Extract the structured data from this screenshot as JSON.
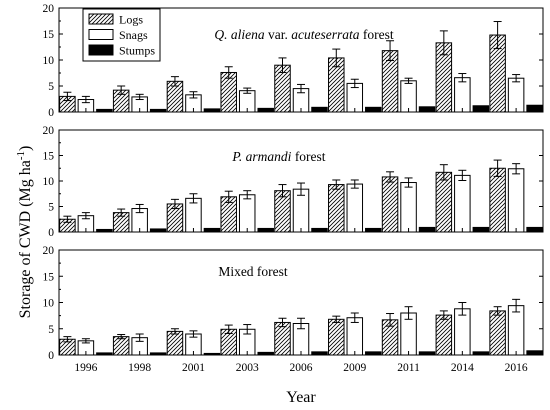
{
  "chart_data": {
    "type": "bar",
    "ylabel": "Storage of CWD (Mg ha-1)",
    "ylabel_parts": {
      "base": "Storage of CWD (Mg ha",
      "sup": "-1",
      "close": ")"
    },
    "xlabel": "Year",
    "categories": [
      "1996",
      "1998",
      "2001",
      "2003",
      "2006",
      "2009",
      "2011",
      "2014",
      "2016"
    ],
    "ylim": [
      0,
      20
    ],
    "yticks": [
      0,
      5,
      10,
      15,
      20
    ],
    "legend": {
      "position": "top-left",
      "entries": [
        {
          "name": "Logs",
          "pattern": "hatched"
        },
        {
          "name": "Snags",
          "pattern": "white"
        },
        {
          "name": "Stumps",
          "pattern": "black"
        }
      ]
    },
    "panels": [
      {
        "title_parts": [
          {
            "text": "Q. aliena",
            "italic": true
          },
          {
            "text": " var. ",
            "italic": false
          },
          {
            "text": "acuteserrata",
            "italic": true
          },
          {
            "text": " forest",
            "italic": false
          }
        ],
        "series": [
          {
            "name": "Logs",
            "values": [
              3.0,
              4.2,
              5.9,
              7.6,
              9.0,
              10.4,
              11.8,
              13.3,
              14.8
            ],
            "errors": [
              0.8,
              0.8,
              0.9,
              1.1,
              1.4,
              1.7,
              1.9,
              2.3,
              2.6
            ]
          },
          {
            "name": "Snags",
            "values": [
              2.4,
              2.9,
              3.3,
              4.1,
              4.5,
              5.5,
              6.0,
              6.6,
              6.5
            ],
            "errors": [
              0.6,
              0.5,
              0.6,
              0.5,
              0.8,
              0.8,
              0.5,
              0.8,
              0.7
            ]
          },
          {
            "name": "Stumps",
            "values": [
              0.5,
              0.5,
              0.6,
              0.7,
              0.9,
              0.9,
              1.0,
              1.2,
              1.3
            ],
            "errors": [
              0.1,
              0.1,
              0.1,
              0.1,
              0.1,
              0.1,
              0.1,
              0.1,
              0.1
            ]
          }
        ]
      },
      {
        "title_parts": [
          {
            "text": "P. armandi",
            "italic": true
          },
          {
            "text": " forest",
            "italic": false
          }
        ],
        "series": [
          {
            "name": "Logs",
            "values": [
              2.5,
              3.8,
              5.5,
              6.9,
              8.1,
              9.3,
              10.8,
              11.7,
              12.5
            ],
            "errors": [
              0.6,
              0.7,
              0.9,
              1.1,
              1.2,
              0.9,
              1.0,
              1.5,
              1.6
            ]
          },
          {
            "name": "Snags",
            "values": [
              3.2,
              4.6,
              6.6,
              7.3,
              8.4,
              9.4,
              9.7,
              11.1,
              12.4
            ],
            "errors": [
              0.6,
              0.8,
              0.9,
              0.8,
              1.2,
              0.8,
              0.9,
              1.0,
              1.0
            ]
          },
          {
            "name": "Stumps",
            "values": [
              0.5,
              0.6,
              0.7,
              0.7,
              0.7,
              0.7,
              0.9,
              0.9,
              0.9
            ],
            "errors": [
              0.1,
              0.1,
              0.1,
              0.1,
              0.1,
              0.1,
              0.1,
              0.1,
              0.1
            ]
          }
        ]
      },
      {
        "title_parts": [
          {
            "text": "Mixed forest",
            "italic": false
          }
        ],
        "series": [
          {
            "name": "Logs",
            "values": [
              3.0,
              3.5,
              4.5,
              4.9,
              6.2,
              6.8,
              6.7,
              7.6,
              8.4
            ],
            "errors": [
              0.5,
              0.4,
              0.5,
              0.8,
              0.8,
              0.6,
              1.2,
              0.8,
              0.8
            ]
          },
          {
            "name": "Snags",
            "values": [
              2.7,
              3.3,
              4.0,
              4.9,
              6.0,
              7.1,
              8.0,
              8.8,
              9.4
            ],
            "errors": [
              0.4,
              0.7,
              0.6,
              0.9,
              1.0,
              0.9,
              1.2,
              1.2,
              1.2
            ]
          },
          {
            "name": "Stumps",
            "values": [
              0.4,
              0.4,
              0.3,
              0.5,
              0.6,
              0.6,
              0.6,
              0.6,
              0.8
            ],
            "errors": [
              0.1,
              0.1,
              0.1,
              0.1,
              0.1,
              0.1,
              0.1,
              0.1,
              0.1
            ]
          }
        ]
      }
    ]
  }
}
